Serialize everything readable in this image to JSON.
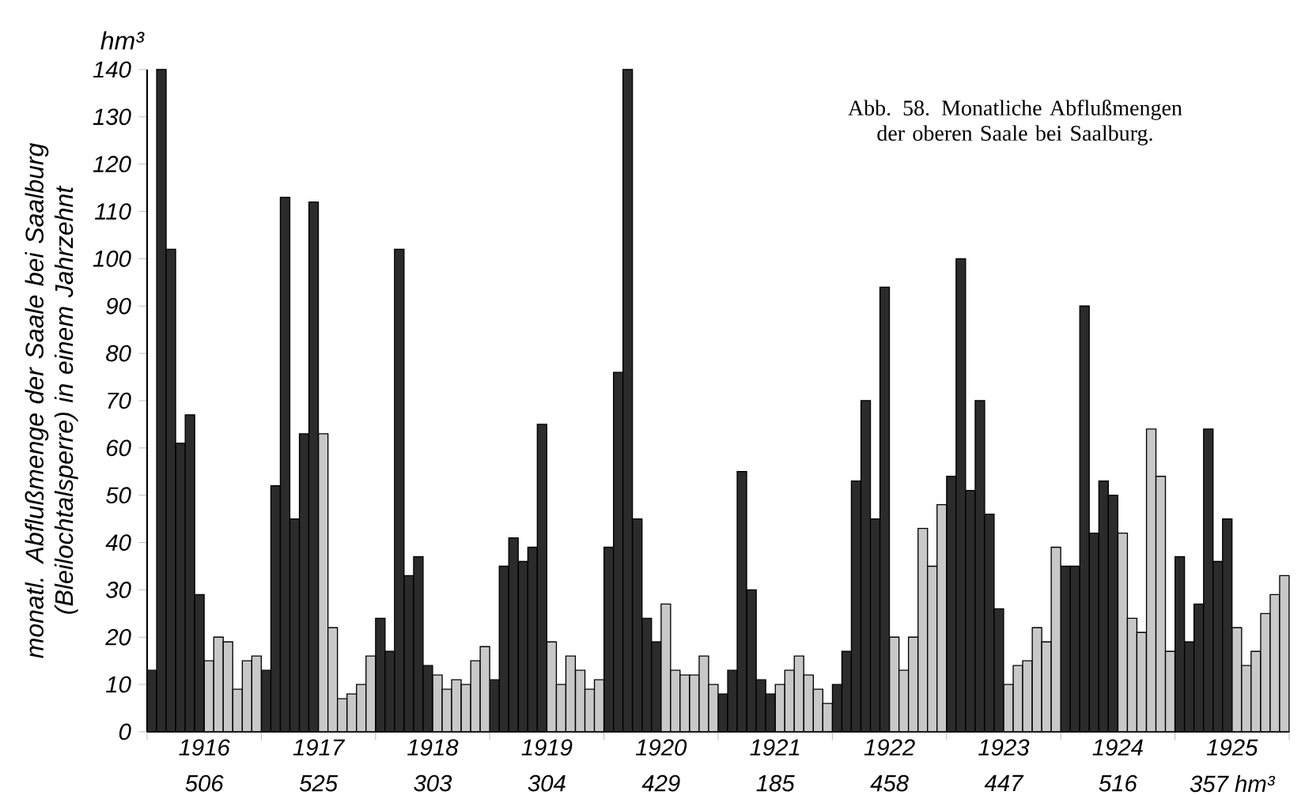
{
  "chart_data": {
    "type": "bar",
    "title": "Abb. 58. Monatliche Abflußmengen der oberen Saale bei Saalburg.",
    "ylabel": "monatl. Abflußmenge der Saale bei Saalburg (Bleilochtalsperre) in einem Jahrzehnt",
    "annotations": [
      "506",
      "525",
      "303",
      "304",
      "429",
      "185",
      "458",
      "447",
      "516",
      "357 hm³",
      "hm³"
    ],
    "series": [
      {
        "color": "#2b2b2b",
        "x": [
          1915.542,
          1915.625,
          1915.708,
          1915.792,
          1915.875,
          1915.958,
          1916.542,
          1916.625,
          1916.708,
          1916.792,
          1916.875,
          1916.958,
          1917.542,
          1917.625,
          1917.708,
          1917.792,
          1917.875,
          1917.958,
          1918.542,
          1918.625,
          1918.708,
          1918.792,
          1918.875,
          1918.958,
          1919.542,
          1919.625,
          1919.708,
          1919.792,
          1919.875,
          1919.958,
          1920.542,
          1920.625,
          1920.708,
          1920.792,
          1920.875,
          1920.958,
          1921.542,
          1921.625,
          1921.708,
          1921.792,
          1921.875,
          1921.958,
          1922.542,
          1922.625,
          1922.708,
          1922.792,
          1922.875,
          1922.958,
          1923.542,
          1923.625,
          1923.708,
          1923.792,
          1923.875,
          1923.958,
          1924.542,
          1924.625,
          1924.708,
          1924.792,
          1924.875,
          1924.958
        ],
        "values": [
          13,
          140,
          102,
          61,
          67,
          29,
          13,
          52,
          113,
          45,
          63,
          112,
          24,
          17,
          102,
          33,
          37,
          14,
          11,
          35,
          41,
          36,
          39,
          65,
          39,
          76,
          140,
          45,
          24,
          19,
          8,
          13,
          55,
          30,
          11,
          8,
          10,
          17,
          53,
          70,
          45,
          94,
          54,
          100,
          51,
          70,
          46,
          26,
          35,
          35,
          90,
          42,
          53,
          50,
          37,
          19,
          27,
          64,
          36,
          45
        ]
      },
      {
        "color": "#c8c8c8",
        "x": [
          1916.042,
          1916.125,
          1916.208,
          1916.292,
          1916.375,
          1916.458,
          1917.042,
          1917.125,
          1917.208,
          1917.292,
          1917.375,
          1917.458,
          1918.042,
          1918.125,
          1918.208,
          1918.292,
          1918.375,
          1918.458,
          1919.042,
          1919.125,
          1919.208,
          1919.292,
          1919.375,
          1919.458,
          1920.042,
          1920.125,
          1920.208,
          1920.292,
          1920.375,
          1920.458,
          1921.042,
          1921.125,
          1921.208,
          1921.292,
          1921.375,
          1921.458,
          1922.042,
          1922.125,
          1922.208,
          1922.292,
          1922.375,
          1922.458,
          1923.042,
          1923.125,
          1923.208,
          1923.292,
          1923.375,
          1923.458,
          1924.042,
          1924.125,
          1924.208,
          1924.292,
          1924.375,
          1924.458,
          1925.042,
          1925.125,
          1925.208,
          1925.292,
          1925.375,
          1925.458
        ],
        "values": [
          15,
          20,
          19,
          9,
          15,
          16,
          63,
          22,
          7,
          8,
          10,
          16,
          12,
          9,
          11,
          10,
          15,
          18,
          19,
          10,
          16,
          13,
          9,
          11,
          27,
          13,
          12,
          12,
          16,
          10,
          10,
          13,
          16,
          12,
          9,
          6,
          20,
          13,
          20,
          43,
          35,
          48,
          10,
          14,
          15,
          22,
          19,
          39,
          42,
          24,
          21,
          64,
          54,
          17,
          22,
          14,
          17,
          25,
          29,
          33
        ]
      }
    ],
    "xlim": [
      1915.5,
      1925.5
    ],
    "xticks": [
      {
        "value": 1915.5,
        "label": null
      },
      1916,
      {
        "value": 1916.5,
        "label": null
      },
      1917,
      {
        "value": 1917.5,
        "label": null
      },
      1918,
      {
        "value": 1918.5,
        "label": null
      },
      1919,
      {
        "value": 1919.5,
        "label": null
      },
      1920,
      {
        "value": 1920.5,
        "label": null
      },
      1921,
      {
        "value": 1921.5,
        "label": null
      },
      1922,
      {
        "value": 1922.5,
        "label": null
      },
      1923,
      {
        "value": 1923.5,
        "label": null
      },
      1924,
      {
        "value": 1924.5,
        "label": null
      },
      1925,
      {
        "value": 1925.5,
        "label": null
      }
    ],
    "ylim": [
      0,
      140
    ],
    "yticks": [
      0,
      10,
      20,
      30,
      40,
      50,
      60,
      70,
      80,
      90,
      100,
      110,
      120,
      130,
      140
    ]
  }
}
